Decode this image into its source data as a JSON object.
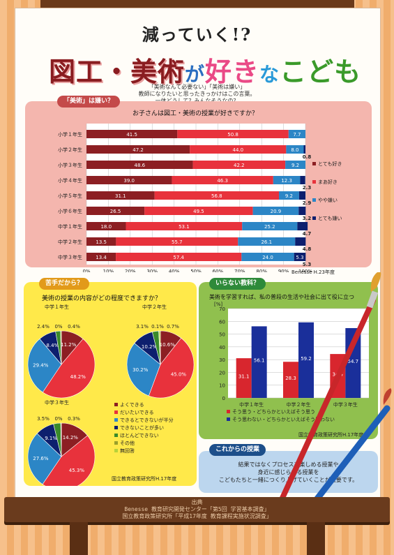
{
  "header": {
    "title_line1": "減っていく!?",
    "title_a": "図工・美術",
    "title_b": "が",
    "title_c": "好き",
    "title_d": "な",
    "title_e": "こども",
    "intro": [
      "「美術なんて必要ない」「美術は嫌い」",
      "教師になりたいと思ったきっかけはこの言葉。",
      "一体どうして？みんなそうなの？"
    ]
  },
  "colors": {
    "dark_red": "#8c1f23",
    "red": "#e8323c",
    "light_blue": "#2c86c6",
    "navy": "#0d1f6e",
    "green": "#3a8a2a",
    "olive": "#9aa02a"
  },
  "sections": {
    "s1_pill": "「美術」は嫌い？",
    "s2_pill": "苦手だから？",
    "s3_pill": "いらない教科？",
    "s4_pill": "これからの授業"
  },
  "chart_data": [
    {
      "type": "bar",
      "orientation": "horizontal-stacked-100",
      "title": "お子さんは図工・美術の授業が好きですか？",
      "categories": [
        "小学１年生",
        "小学２年生",
        "小学３年生",
        "小学４年生",
        "小学５年生",
        "小学６年生",
        "中学１年生",
        "中学２年生",
        "中学３年生"
      ],
      "series": [
        {
          "name": "とても好き",
          "color": "#8c1f23",
          "values": [
            41.5,
            47.2,
            48.6,
            39.0,
            31.1,
            26.5,
            18.0,
            13.5,
            13.4
          ]
        },
        {
          "name": "まあ好き",
          "color": "#e8323c",
          "values": [
            50.8,
            44.0,
            42.2,
            46.3,
            56.8,
            49.5,
            53.1,
            55.7,
            57.4
          ]
        },
        {
          "name": "やや嫌い",
          "color": "#2c86c6",
          "values": [
            7.7,
            8.0,
            9.2,
            12.3,
            9.2,
            20.9,
            25.2,
            26.1,
            24.0
          ]
        },
        {
          "name": "とても嫌い",
          "color": "#0d1f6e",
          "values": [
            0.0,
            0.8,
            0.0,
            2.3,
            2.9,
            3.2,
            4.7,
            4.8,
            5.3
          ]
        }
      ],
      "outside_labels": [
        "",
        "0.8",
        "",
        "2.3",
        "2.9",
        "3.2",
        "4.7",
        "4.8",
        "5.3"
      ],
      "xticks": [
        "0%",
        "10%",
        "20%",
        "30%",
        "40%",
        "50%",
        "60%",
        "70%",
        "80%",
        "90%",
        "100%"
      ],
      "source": "Benesse H.23年度"
    },
    {
      "type": "pie",
      "title": "美術の授業の内容がどの程度できますか？",
      "legend": [
        "よくできる",
        "だいたいできる",
        "できるとできないが半分",
        "できないことが多い",
        "ほとんどできない",
        "その他",
        "無回答"
      ],
      "legend_colors": [
        "#8c1f23",
        "#e8323c",
        "#2c86c6",
        "#0d1f6e",
        "#3a8a2a",
        "#9aa02a",
        "#b8d23a"
      ],
      "pies": [
        {
          "name": "中学１年生",
          "values": [
            11.2,
            48.2,
            29.4,
            8.4,
            2.4,
            0.0,
            0.4
          ],
          "labels": [
            "11.2%",
            "48.2%",
            "29.4%",
            "8.4%",
            "2.4%",
            "0%",
            "0.4%"
          ]
        },
        {
          "name": "中学２年生",
          "values": [
            10.6,
            45.0,
            30.2,
            10.2,
            3.1,
            0.1,
            0.7
          ],
          "labels": [
            "10.6%",
            "45.0%",
            "30.2%",
            "10.2%",
            "3.1%",
            "0.1%",
            "0.7%"
          ]
        },
        {
          "name": "中学３年生",
          "values": [
            14.2,
            45.3,
            27.6,
            9.1,
            3.5,
            0.0,
            0.3
          ],
          "labels": [
            "14.2%",
            "45.3%",
            "27.6%",
            "9.1%",
            "3.5%",
            "0%",
            "0.3%"
          ]
        }
      ],
      "source": "国立教育政策研究所H.17年度"
    },
    {
      "type": "bar",
      "title": "美術を学習すれば、私の普段の生活や社会に出て役に立つ",
      "categories": [
        "中学１年生",
        "中学２年生",
        "中学３年生"
      ],
      "series": [
        {
          "name": "そう思う・どちらかといえばそう思う",
          "color": "#d8262e",
          "values": [
            31.1,
            28.3,
            34.4
          ]
        },
        {
          "name": "そう思わない・どちらかといえばそう思わない",
          "color": "#1a2f9a",
          "values": [
            56.1,
            59.2,
            54.7
          ]
        }
      ],
      "ylabel": "[%]",
      "ylim": [
        0,
        70
      ],
      "yticks": [
        "0",
        "10",
        "20",
        "30",
        "40",
        "50",
        "60",
        "70"
      ],
      "source": "国立教育政策研究所H.17年度"
    }
  ],
  "closing": [
    "結果ではなくプロセスを楽しめる授業や",
    "身近に感じられる授業を",
    "こどもたちと一緒につくり上げていくことが重要です。"
  ],
  "credit": [
    "出典",
    "Benesse 教育研究開発センター「第5回 学習基本調査」",
    "国立教育政策研究所「平成17年度 教育課程実施状況調査」"
  ]
}
